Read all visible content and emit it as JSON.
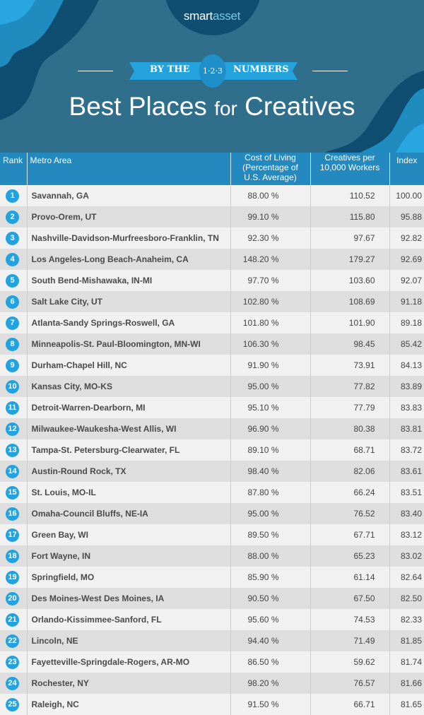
{
  "header": {
    "logo_a": "smart",
    "logo_b": "asset",
    "banner_left": "BY THE",
    "banner_badge": "1·2·3",
    "banner_right": "NUMBERS",
    "title_a": "Best Places ",
    "title_b": "for",
    "title_c": " Creatives"
  },
  "columns": [
    "Rank",
    "Metro Area",
    "Cost of Living (Percentage of U.S. Average)",
    "Creatives per 10,000 Workers",
    "Index"
  ],
  "rows": [
    [
      "1",
      "Savannah, GA",
      "88.00 %",
      "110.52",
      "100.00"
    ],
    [
      "2",
      "Provo-Orem, UT",
      "99.10 %",
      "115.80",
      "95.88"
    ],
    [
      "3",
      "Nashville-Davidson-Murfreesboro-Franklin, TN",
      "92.30 %",
      "97.67",
      "92.82"
    ],
    [
      "4",
      "Los Angeles-Long Beach-Anaheim, CA",
      "148.20 %",
      "179.27",
      "92.69"
    ],
    [
      "5",
      "South Bend-Mishawaka, IN-MI",
      "97.70 %",
      "103.60",
      "92.07"
    ],
    [
      "6",
      "Salt Lake City, UT",
      "102.80 %",
      "108.69",
      "91.18"
    ],
    [
      "7",
      "Atlanta-Sandy Springs-Roswell, GA",
      "101.80 %",
      "101.90",
      "89.18"
    ],
    [
      "8",
      "Minneapolis-St. Paul-Bloomington, MN-WI",
      "106.30 %",
      "98.45",
      "85.42"
    ],
    [
      "9",
      "Durham-Chapel Hill, NC",
      "91.90 %",
      "73.91",
      "84.13"
    ],
    [
      "10",
      "Kansas City, MO-KS",
      "95.00 %",
      "77.82",
      "83.89"
    ],
    [
      "11",
      "Detroit-Warren-Dearborn, MI",
      "95.10 %",
      "77.79",
      "83.83"
    ],
    [
      "12",
      "Milwaukee-Waukesha-West Allis, WI",
      "96.90 %",
      "80.38",
      "83.81"
    ],
    [
      "13",
      "Tampa-St. Petersburg-Clearwater, FL",
      "89.10 %",
      "68.71",
      "83.72"
    ],
    [
      "14",
      "Austin-Round Rock, TX",
      "98.40 %",
      "82.06",
      "83.61"
    ],
    [
      "15",
      "St. Louis, MO-IL",
      "87.80 %",
      "66.24",
      "83.51"
    ],
    [
      "16",
      "Omaha-Council Bluffs, NE-IA",
      "95.00 %",
      "76.52",
      "83.40"
    ],
    [
      "17",
      "Green Bay, WI",
      "89.50 %",
      "67.71",
      "83.12"
    ],
    [
      "18",
      "Fort Wayne, IN",
      "88.00 %",
      "65.23",
      "83.02"
    ],
    [
      "19",
      "Springfield, MO",
      "85.90 %",
      "61.14",
      "82.64"
    ],
    [
      "20",
      "Des Moines-West Des Moines, IA",
      "90.50 %",
      "67.50",
      "82.50"
    ],
    [
      "21",
      "Orlando-Kissimmee-Sanford, FL",
      "95.60 %",
      "74.53",
      "82.33"
    ],
    [
      "22",
      "Lincoln, NE",
      "94.40 %",
      "71.49",
      "81.85"
    ],
    [
      "23",
      "Fayetteville-Springdale-Rogers, AR-MO",
      "86.50 %",
      "59.62",
      "81.74"
    ],
    [
      "24",
      "Rochester, NY",
      "98.20 %",
      "76.57",
      "81.66"
    ],
    [
      "25",
      "Raleigh, NC",
      "91.50 %",
      "66.71",
      "81.65"
    ]
  ]
}
